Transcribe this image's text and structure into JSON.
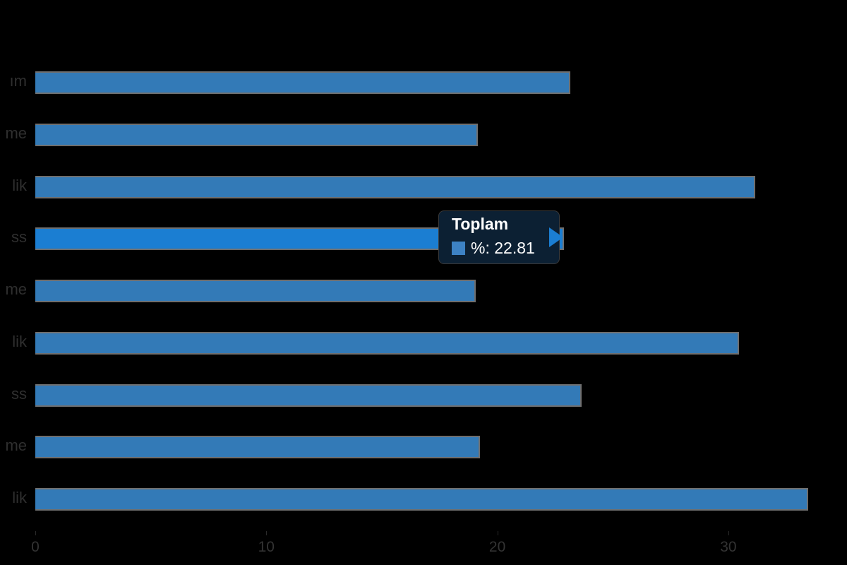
{
  "chart_data": {
    "type": "bar",
    "orientation": "horizontal",
    "title": "",
    "xlabel": "",
    "ylabel": "",
    "series_name": "%",
    "categories_clipped_fragments": [
      "ım",
      "me",
      "lik",
      "ss",
      "me",
      "lik",
      "ss",
      "me",
      "lik"
    ],
    "values": [
      23.1,
      19.1,
      31.1,
      22.81,
      19.0,
      30.4,
      23.6,
      19.2,
      33.4
    ],
    "highlighted_index": 3,
    "x_ticks": [
      0,
      10,
      20,
      30
    ],
    "xlim": [
      0,
      35
    ],
    "grid": false,
    "legend_position": "none",
    "colors": {
      "bar": "#337ab7",
      "bar_highlight": "#1b7ed2",
      "bar_border": "#6f6f6f",
      "tooltip_bg": "#0c2033",
      "tooltip_text": "#ffffff",
      "tooltip_swatch": "#3d82c4",
      "axis_text": "#333333",
      "background": "#000000"
    }
  },
  "tooltip": {
    "title": "Toplam",
    "value_text": "%: 22.81"
  },
  "layout_hints": {
    "note": "y-axis category labels are clipped at the left image edge; only trailing letter fragments are visible"
  }
}
